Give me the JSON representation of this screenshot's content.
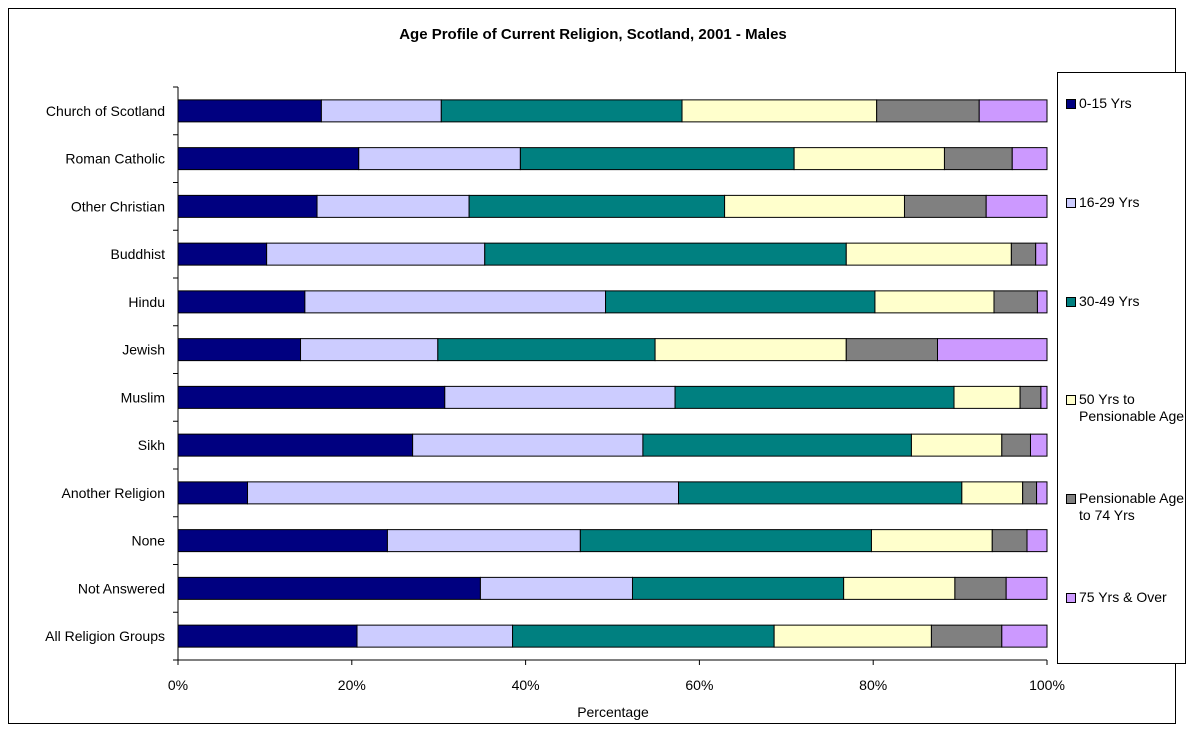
{
  "chart_data": {
    "type": "bar",
    "orientation": "horizontal",
    "stacked": "percent",
    "title": "Age Profile of Current Religion, Scotland, 2001 - Males",
    "xlabel": "Percentage",
    "ylabel": "",
    "xlim": [
      0,
      100
    ],
    "x_ticks": [
      "0%",
      "20%",
      "40%",
      "60%",
      "80%",
      "100%"
    ],
    "grid": false,
    "legend_position": "right",
    "categories": [
      "Church of Scotland",
      "Roman Catholic",
      "Other Christian",
      "Buddhist",
      "Hindu",
      "Jewish",
      "Muslim",
      "Sikh",
      "Another Religion",
      "None",
      "Not Answered",
      "All Religion Groups"
    ],
    "series": [
      {
        "name": "0-15 Yrs",
        "color": "#000080",
        "values": [
          16.5,
          20.8,
          16.0,
          10.2,
          14.6,
          14.1,
          30.7,
          27.0,
          8.0,
          24.1,
          34.8,
          20.6
        ]
      },
      {
        "name": "16-29 Yrs",
        "color": "#ccccff",
        "values": [
          13.8,
          18.6,
          17.5,
          25.1,
          34.6,
          15.8,
          26.5,
          26.5,
          49.6,
          22.2,
          17.5,
          17.9
        ]
      },
      {
        "name": "30-49 Yrs",
        "color": "#008080",
        "values": [
          27.7,
          31.5,
          29.4,
          41.6,
          31.0,
          25.0,
          32.1,
          30.9,
          32.6,
          33.5,
          24.3,
          30.1
        ]
      },
      {
        "name": "50 Yrs to Pensionable Age",
        "color": "#ffffcc",
        "values": [
          22.4,
          17.3,
          20.7,
          19.0,
          13.7,
          22.0,
          7.6,
          10.4,
          7.0,
          13.9,
          12.8,
          18.1
        ]
      },
      {
        "name": "Pensionable Age to 74 Yrs",
        "color": "#808080",
        "values": [
          11.8,
          7.8,
          9.4,
          2.8,
          5.0,
          10.5,
          2.4,
          3.3,
          1.6,
          4.0,
          5.9,
          8.1
        ]
      },
      {
        "name": "75 Yrs & Over",
        "color": "#cc99ff",
        "values": [
          7.8,
          4.0,
          7.0,
          1.3,
          1.1,
          12.6,
          0.7,
          1.9,
          1.2,
          2.3,
          4.7,
          5.2
        ]
      }
    ]
  }
}
